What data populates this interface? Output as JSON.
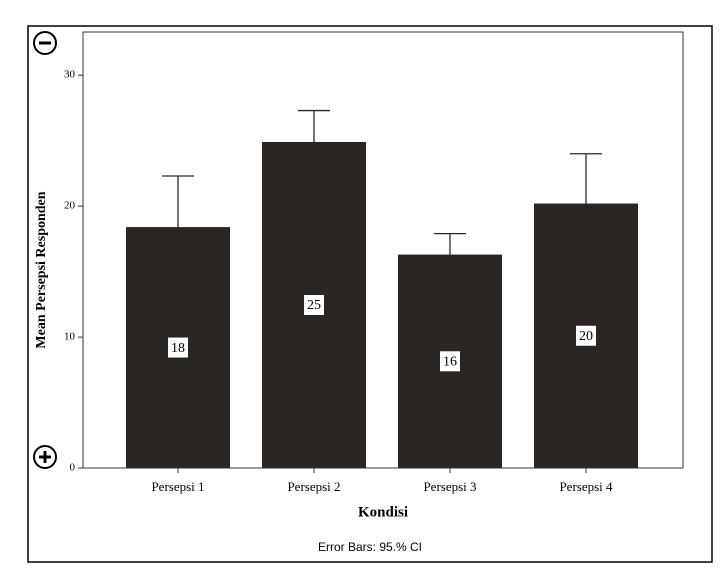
{
  "chart_data": {
    "type": "bar",
    "x_label": "Kondisi",
    "y_label": "Mean Persepsi Responden",
    "footer": "Error Bars: 95.% CI",
    "categories": [
      "Persepsi 1",
      "Persepsi 2",
      "Persepsi 3",
      "Persepsi 4"
    ],
    "values": [
      18.4,
      24.9,
      16.3,
      20.2
    ],
    "value_labels": [
      "18",
      "25",
      "16",
      "20"
    ],
    "ci_low": [
      14.6,
      22.6,
      15.0,
      16.6
    ],
    "ci_high": [
      22.3,
      27.3,
      17.9,
      24.0
    ],
    "color": "#2b2622",
    "ylim": [
      0,
      33.3
    ],
    "yticks": [
      0,
      10,
      20,
      30
    ]
  }
}
